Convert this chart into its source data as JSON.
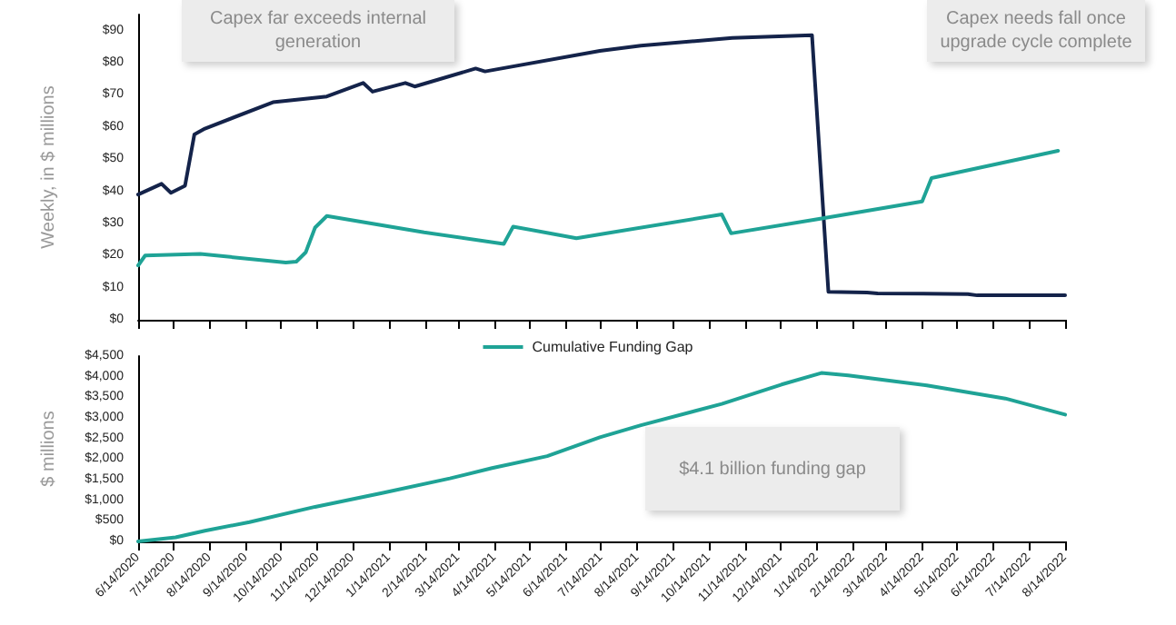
{
  "chart_data": [
    {
      "type": "line",
      "ylabel": "Weekly, in $ millions",
      "ylim": [
        0,
        95
      ],
      "yticks": [
        {
          "value": 0,
          "label": "$0"
        },
        {
          "value": 10,
          "label": "$10"
        },
        {
          "value": 20,
          "label": "$20"
        },
        {
          "value": 30,
          "label": "$30"
        },
        {
          "value": 40,
          "label": "$40"
        },
        {
          "value": 50,
          "label": "$50"
        },
        {
          "value": 60,
          "label": "$60"
        },
        {
          "value": 70,
          "label": "$70"
        },
        {
          "value": 80,
          "label": "$80"
        },
        {
          "value": 90,
          "label": "$90"
        }
      ],
      "xlim": [
        "2020-06-14",
        "2022-08-14"
      ],
      "xticks": [
        {
          "value": "2020-06-14",
          "label": null
        },
        {
          "value": "2020-07-14",
          "label": null
        },
        {
          "value": "2020-08-14",
          "label": null
        },
        {
          "value": "2020-09-14",
          "label": null
        },
        {
          "value": "2020-10-14",
          "label": null
        },
        {
          "value": "2020-11-14",
          "label": null
        },
        {
          "value": "2020-12-14",
          "label": null
        },
        {
          "value": "2021-01-14",
          "label": null
        },
        {
          "value": "2021-02-14",
          "label": null
        },
        {
          "value": "2021-03-14",
          "label": null
        },
        {
          "value": "2021-04-14",
          "label": null
        },
        {
          "value": "2021-05-14",
          "label": null
        },
        {
          "value": "2021-06-14",
          "label": null
        },
        {
          "value": "2021-07-14",
          "label": null
        },
        {
          "value": "2021-08-14",
          "label": null
        },
        {
          "value": "2021-09-14",
          "label": null
        },
        {
          "value": "2021-10-14",
          "label": null
        },
        {
          "value": "2021-11-14",
          "label": null
        },
        {
          "value": "2021-12-14",
          "label": null
        },
        {
          "value": "2022-01-14",
          "label": null
        },
        {
          "value": "2022-02-14",
          "label": null
        },
        {
          "value": "2022-03-14",
          "label": null
        },
        {
          "value": "2022-04-14",
          "label": null
        },
        {
          "value": "2022-05-14",
          "label": null
        },
        {
          "value": "2022-06-14",
          "label": null
        },
        {
          "value": "2022-07-14",
          "label": null
        },
        {
          "value": "2022-08-14",
          "label": null
        }
      ],
      "tick_labels": "y",
      "grid": false,
      "legend": false,
      "marker": "none",
      "line_style": "solid",
      "series": [
        {
          "color": "#14234a",
          "x": [
            "2020-06-14",
            "2020-07-04",
            "2020-07-12",
            "2020-07-24",
            "2020-08-01",
            "2020-08-10",
            "2020-10-07",
            "2020-11-22",
            "2020-12-23",
            "2020-12-31",
            "2021-01-28",
            "2021-02-05",
            "2021-03-29",
            "2021-04-06",
            "2021-07-13",
            "2021-08-17",
            "2021-11-03",
            "2022-01-10",
            "2022-01-24",
            "2022-02-26",
            "2022-03-07",
            "2022-05-23",
            "2022-05-31",
            "2022-08-14"
          ],
          "values": [
            39,
            42.3,
            39.5,
            41.7,
            57.7,
            59.5,
            67.7,
            69.5,
            73.7,
            71,
            73.7,
            72.6,
            78.2,
            77.3,
            83.7,
            85.3,
            87.7,
            88.6,
            8.7,
            8.5,
            8.2,
            8.0,
            7.6,
            7.6
          ]
        },
        {
          "color": "#1fa396",
          "x": [
            "2020-06-14",
            "2020-06-20",
            "2020-08-06",
            "2020-10-18",
            "2020-10-27",
            "2020-11-04",
            "2020-11-12",
            "2020-11-22",
            "2021-02-13",
            "2021-04-22",
            "2021-04-30",
            "2021-06-23",
            "2021-10-25",
            "2021-11-02",
            "2022-01-16",
            "2022-04-14",
            "2022-04-22",
            "2022-08-08"
          ],
          "values": [
            16.9,
            20.0,
            20.5,
            17.8,
            18.1,
            21,
            28.7,
            32.3,
            27.2,
            23.6,
            29.0,
            25.4,
            32.8,
            26.9,
            31.4,
            36.8,
            44.1,
            52.6
          ]
        }
      ],
      "annotations": [
        "Capex far exceeds internal generation",
        "Capex needs fall once upgrade cycle complete"
      ]
    },
    {
      "type": "line",
      "ylabel": "$ millions",
      "ylim": [
        0,
        4500
      ],
      "yticks": [
        {
          "value": 0,
          "label": "$0"
        },
        {
          "value": 500,
          "label": "$500"
        },
        {
          "value": 1000,
          "label": "$1,000"
        },
        {
          "value": 1500,
          "label": "$1,500"
        },
        {
          "value": 2000,
          "label": "$2,000"
        },
        {
          "value": 2500,
          "label": "$2,500"
        },
        {
          "value": 3000,
          "label": "$3,000"
        },
        {
          "value": 3500,
          "label": "$3,500"
        },
        {
          "value": 4000,
          "label": "$4,000"
        },
        {
          "value": 4500,
          "label": "$4,500"
        }
      ],
      "xlim": [
        "2020-06-14",
        "2022-08-14"
      ],
      "xticks": [
        {
          "value": "2020-06-14",
          "label": "6/14/2020"
        },
        {
          "value": "2020-07-14",
          "label": "7/14/2020"
        },
        {
          "value": "2020-08-14",
          "label": "8/14/2020"
        },
        {
          "value": "2020-09-14",
          "label": "9/14/2020"
        },
        {
          "value": "2020-10-14",
          "label": "10/14/2020"
        },
        {
          "value": "2020-11-14",
          "label": "11/14/2020"
        },
        {
          "value": "2020-12-14",
          "label": "12/14/2020"
        },
        {
          "value": "2021-01-14",
          "label": "1/14/2021"
        },
        {
          "value": "2021-02-14",
          "label": "2/14/2021"
        },
        {
          "value": "2021-03-14",
          "label": "3/14/2021"
        },
        {
          "value": "2021-04-14",
          "label": "4/14/2021"
        },
        {
          "value": "2021-05-14",
          "label": "5/14/2021"
        },
        {
          "value": "2021-06-14",
          "label": "6/14/2021"
        },
        {
          "value": "2021-07-14",
          "label": "7/14/2021"
        },
        {
          "value": "2021-08-14",
          "label": "8/14/2021"
        },
        {
          "value": "2021-09-14",
          "label": "9/14/2021"
        },
        {
          "value": "2021-10-14",
          "label": "10/14/2021"
        },
        {
          "value": "2021-11-14",
          "label": "11/14/2021"
        },
        {
          "value": "2021-12-14",
          "label": "12/14/2021"
        },
        {
          "value": "2022-01-14",
          "label": "1/14/2022"
        },
        {
          "value": "2022-02-14",
          "label": "2/14/2022"
        },
        {
          "value": "2022-03-14",
          "label": "3/14/2022"
        },
        {
          "value": "2022-04-14",
          "label": "4/14/2022"
        },
        {
          "value": "2022-05-14",
          "label": "5/14/2022"
        },
        {
          "value": "2022-06-14",
          "label": "6/14/2022"
        },
        {
          "value": "2022-07-14",
          "label": "7/14/2022"
        },
        {
          "value": "2022-08-14",
          "label": "8/14/2022"
        }
      ],
      "grid": false,
      "legend": "top",
      "marker": "none",
      "line_style": "solid",
      "series": [
        {
          "name": "Cumulative Funding Gap",
          "color": "#1fa396",
          "x": [
            "2020-06-14",
            "2020-07-16",
            "2020-08-10",
            "2020-09-17",
            "2020-11-12",
            "2021-01-09",
            "2021-03-07",
            "2021-04-12",
            "2021-05-29",
            "2021-07-13",
            "2021-08-17",
            "2021-10-25",
            "2021-12-15",
            "2022-01-18",
            "2022-02-10",
            "2022-03-23",
            "2022-04-18",
            "2022-06-24",
            "2022-08-14"
          ],
          "values": [
            0,
            100,
            260,
            470,
            840,
            1180,
            1530,
            1780,
            2070,
            2530,
            2820,
            3340,
            3810,
            4090,
            4030,
            3880,
            3790,
            3470,
            3080
          ]
        }
      ],
      "annotations": [
        "$4.1 billion funding gap"
      ]
    }
  ]
}
